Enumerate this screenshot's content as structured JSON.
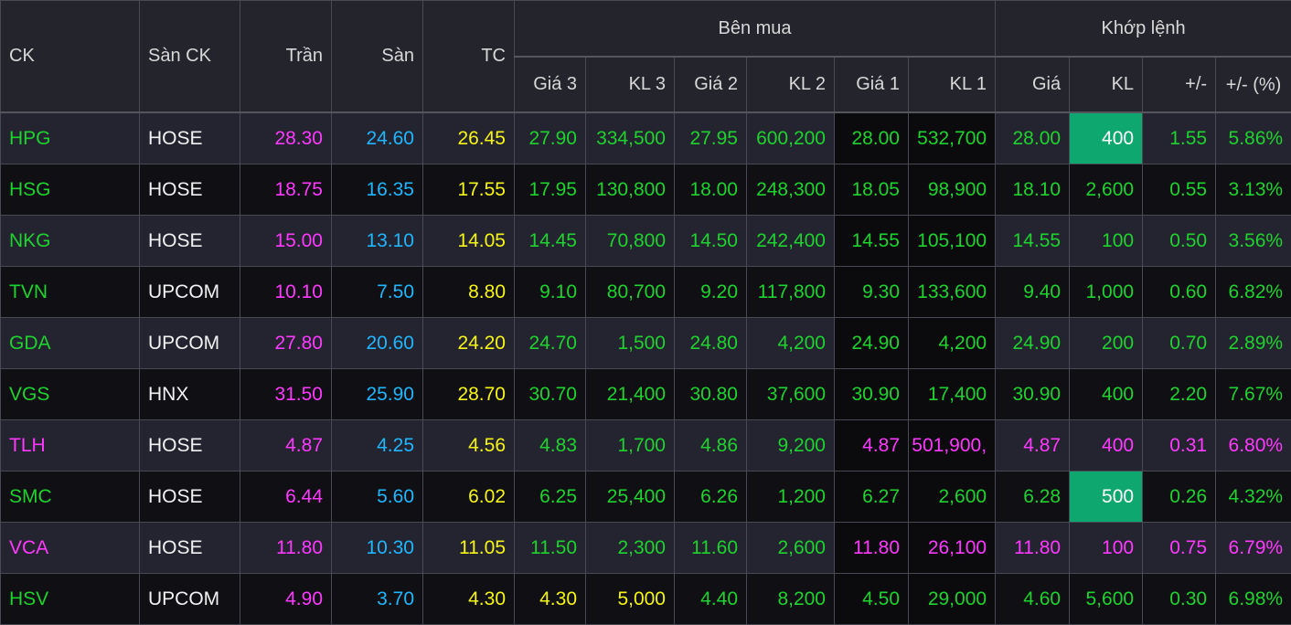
{
  "colors": {
    "up": "#1ed32e",
    "ceiling": "#ff39ff",
    "floor": "#20b6ff",
    "reference": "#f5f514",
    "text": "#f2f2f2",
    "flash": "#0fa770"
  },
  "header": {
    "ck": "CK",
    "exchange": "Sàn CK",
    "ceiling": "Trần",
    "floor": "Sàn",
    "reference": "TC",
    "bid_group": "Bên mua",
    "match_group": "Khớp lệnh",
    "bid_price_3": "Giá 3",
    "bid_vol_3": "KL 3",
    "bid_price_2": "Giá 2",
    "bid_vol_2": "KL 2",
    "bid_price_1": "Giá 1",
    "bid_vol_1": "KL 1",
    "match_price": "Giá",
    "match_vol": "KL",
    "change": "+/-",
    "change_pct": "+/- (%)"
  },
  "rows": [
    {
      "ck": {
        "v": "HPG",
        "c": "g"
      },
      "exchange": "HOSE",
      "ceiling": "28.30",
      "floor": "24.60",
      "ref": "26.45",
      "p3": {
        "v": "27.90",
        "c": "g"
      },
      "v3": {
        "v": "334,500",
        "c": "g"
      },
      "p2": {
        "v": "27.95",
        "c": "g"
      },
      "v2": {
        "v": "600,200",
        "c": "g"
      },
      "p1": {
        "v": "28.00",
        "c": "g"
      },
      "v1": {
        "v": "532,700",
        "c": "g"
      },
      "mp": {
        "v": "28.00",
        "c": "g"
      },
      "mv": {
        "v": "400",
        "c": "w",
        "flash": true
      },
      "chg": {
        "v": "1.55",
        "c": "g"
      },
      "pct": {
        "v": "5.86%",
        "c": "g"
      }
    },
    {
      "ck": {
        "v": "HSG",
        "c": "g"
      },
      "exchange": "HOSE",
      "ceiling": "18.75",
      "floor": "16.35",
      "ref": "17.55",
      "p3": {
        "v": "17.95",
        "c": "g"
      },
      "v3": {
        "v": "130,800",
        "c": "g"
      },
      "p2": {
        "v": "18.00",
        "c": "g"
      },
      "v2": {
        "v": "248,300",
        "c": "g"
      },
      "p1": {
        "v": "18.05",
        "c": "g"
      },
      "v1": {
        "v": "98,900",
        "c": "g"
      },
      "mp": {
        "v": "18.10",
        "c": "g"
      },
      "mv": {
        "v": "2,600",
        "c": "g"
      },
      "chg": {
        "v": "0.55",
        "c": "g"
      },
      "pct": {
        "v": "3.13%",
        "c": "g"
      }
    },
    {
      "ck": {
        "v": "NKG",
        "c": "g"
      },
      "exchange": "HOSE",
      "ceiling": "15.00",
      "floor": "13.10",
      "ref": "14.05",
      "p3": {
        "v": "14.45",
        "c": "g"
      },
      "v3": {
        "v": "70,800",
        "c": "g"
      },
      "p2": {
        "v": "14.50",
        "c": "g"
      },
      "v2": {
        "v": "242,400",
        "c": "g"
      },
      "p1": {
        "v": "14.55",
        "c": "g"
      },
      "v1": {
        "v": "105,100",
        "c": "g"
      },
      "mp": {
        "v": "14.55",
        "c": "g"
      },
      "mv": {
        "v": "100",
        "c": "g"
      },
      "chg": {
        "v": "0.50",
        "c": "g"
      },
      "pct": {
        "v": "3.56%",
        "c": "g"
      }
    },
    {
      "ck": {
        "v": "TVN",
        "c": "g"
      },
      "exchange": "UPCOM",
      "ceiling": "10.10",
      "floor": "7.50",
      "ref": "8.80",
      "p3": {
        "v": "9.10",
        "c": "g"
      },
      "v3": {
        "v": "80,700",
        "c": "g"
      },
      "p2": {
        "v": "9.20",
        "c": "g"
      },
      "v2": {
        "v": "117,800",
        "c": "g"
      },
      "p1": {
        "v": "9.30",
        "c": "g"
      },
      "v1": {
        "v": "133,600",
        "c": "g"
      },
      "mp": {
        "v": "9.40",
        "c": "g"
      },
      "mv": {
        "v": "1,000",
        "c": "g"
      },
      "chg": {
        "v": "0.60",
        "c": "g"
      },
      "pct": {
        "v": "6.82%",
        "c": "g"
      }
    },
    {
      "ck": {
        "v": "GDA",
        "c": "g"
      },
      "exchange": "UPCOM",
      "ceiling": "27.80",
      "floor": "20.60",
      "ref": "24.20",
      "p3": {
        "v": "24.70",
        "c": "g"
      },
      "v3": {
        "v": "1,500",
        "c": "g"
      },
      "p2": {
        "v": "24.80",
        "c": "g"
      },
      "v2": {
        "v": "4,200",
        "c": "g"
      },
      "p1": {
        "v": "24.90",
        "c": "g"
      },
      "v1": {
        "v": "4,200",
        "c": "g"
      },
      "mp": {
        "v": "24.90",
        "c": "g"
      },
      "mv": {
        "v": "200",
        "c": "g"
      },
      "chg": {
        "v": "0.70",
        "c": "g"
      },
      "pct": {
        "v": "2.89%",
        "c": "g"
      }
    },
    {
      "ck": {
        "v": "VGS",
        "c": "g"
      },
      "exchange": "HNX",
      "ceiling": "31.50",
      "floor": "25.90",
      "ref": "28.70",
      "p3": {
        "v": "30.70",
        "c": "g"
      },
      "v3": {
        "v": "21,400",
        "c": "g"
      },
      "p2": {
        "v": "30.80",
        "c": "g"
      },
      "v2": {
        "v": "37,600",
        "c": "g"
      },
      "p1": {
        "v": "30.90",
        "c": "g"
      },
      "v1": {
        "v": "17,400",
        "c": "g"
      },
      "mp": {
        "v": "30.90",
        "c": "g"
      },
      "mv": {
        "v": "400",
        "c": "g"
      },
      "chg": {
        "v": "2.20",
        "c": "g"
      },
      "pct": {
        "v": "7.67%",
        "c": "g"
      }
    },
    {
      "ck": {
        "v": "TLH",
        "c": "m"
      },
      "exchange": "HOSE",
      "ceiling": "4.87",
      "floor": "4.25",
      "ref": "4.56",
      "p3": {
        "v": "4.83",
        "c": "g"
      },
      "v3": {
        "v": "1,700",
        "c": "g"
      },
      "p2": {
        "v": "4.86",
        "c": "g"
      },
      "v2": {
        "v": "9,200",
        "c": "g"
      },
      "p1": {
        "v": "4.87",
        "c": "m"
      },
      "v1": {
        "v": ",501,900",
        "c": "m"
      },
      "mp": {
        "v": "4.87",
        "c": "m"
      },
      "mv": {
        "v": "400",
        "c": "m"
      },
      "chg": {
        "v": "0.31",
        "c": "m"
      },
      "pct": {
        "v": "6.80%",
        "c": "m"
      }
    },
    {
      "ck": {
        "v": "SMC",
        "c": "g"
      },
      "exchange": "HOSE",
      "ceiling": "6.44",
      "floor": "5.60",
      "ref": "6.02",
      "p3": {
        "v": "6.25",
        "c": "g"
      },
      "v3": {
        "v": "25,400",
        "c": "g"
      },
      "p2": {
        "v": "6.26",
        "c": "g"
      },
      "v2": {
        "v": "1,200",
        "c": "g"
      },
      "p1": {
        "v": "6.27",
        "c": "g"
      },
      "v1": {
        "v": "2,600",
        "c": "g"
      },
      "mp": {
        "v": "6.28",
        "c": "g"
      },
      "mv": {
        "v": "500",
        "c": "w",
        "flash": true
      },
      "chg": {
        "v": "0.26",
        "c": "g"
      },
      "pct": {
        "v": "4.32%",
        "c": "g"
      }
    },
    {
      "ck": {
        "v": "VCA",
        "c": "m"
      },
      "exchange": "HOSE",
      "ceiling": "11.80",
      "floor": "10.30",
      "ref": "11.05",
      "p3": {
        "v": "11.50",
        "c": "g"
      },
      "v3": {
        "v": "2,300",
        "c": "g"
      },
      "p2": {
        "v": "11.60",
        "c": "g"
      },
      "v2": {
        "v": "2,600",
        "c": "g"
      },
      "p1": {
        "v": "11.80",
        "c": "m"
      },
      "v1": {
        "v": "26,100",
        "c": "m"
      },
      "mp": {
        "v": "11.80",
        "c": "m"
      },
      "mv": {
        "v": "100",
        "c": "m"
      },
      "chg": {
        "v": "0.75",
        "c": "m"
      },
      "pct": {
        "v": "6.79%",
        "c": "m"
      }
    },
    {
      "ck": {
        "v": "HSV",
        "c": "g"
      },
      "exchange": "UPCOM",
      "ceiling": "4.90",
      "floor": "3.70",
      "ref": "4.30",
      "p3": {
        "v": "4.30",
        "c": "y"
      },
      "v3": {
        "v": "5,000",
        "c": "y"
      },
      "p2": {
        "v": "4.40",
        "c": "g"
      },
      "v2": {
        "v": "8,200",
        "c": "g"
      },
      "p1": {
        "v": "4.50",
        "c": "g"
      },
      "v1": {
        "v": "29,000",
        "c": "g"
      },
      "mp": {
        "v": "4.60",
        "c": "g"
      },
      "mv": {
        "v": "5,600",
        "c": "g"
      },
      "chg": {
        "v": "0.30",
        "c": "g"
      },
      "pct": {
        "v": "6.98%",
        "c": "g"
      }
    }
  ]
}
